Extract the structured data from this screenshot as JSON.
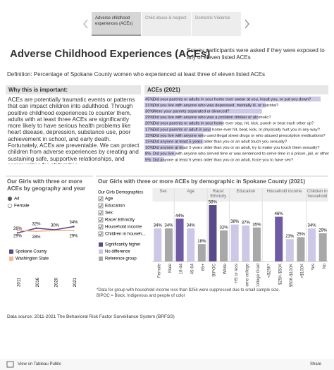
{
  "tabs": [
    "Adverse childhood experiences (ACEs)",
    "Child abuse & neglect",
    "Domestic Violence"
  ],
  "header": {
    "title": "Adverse Childhood Experiences (ACEs)",
    "subtitle": "Survey participants were asked if they were exposed to any of eleven listed ACEs",
    "definition": "Definition: Percentage of Spokane County women who experienced at least three of eleven listed ACEs"
  },
  "importance": {
    "title": "Why this is important:",
    "text": "ACEs are potentially traumatic events or patterns that can impact children into adulthood. Through positive childhood experiences to counter them, adults with at least three ACEs are significantly more likely to have serious health problems like heart disease, depression, substance use, poor achievement in school, and early death. Fortunately, ACEs are preventable. We can protect children from adverse experiences by creating and sustaining safe, supportive relationships, and communities for all families."
  },
  "chart_data": [
    {
      "type": "bar",
      "orientation": "horizontal",
      "title": "ACEs (2021)",
      "color": "#cdc8e8",
      "categories": [
        "Did your parents or adults in your home ever swear at you, insult you, or put you down?",
        "Did you live with anyone who was depressed, mentally ill, or suicidal?",
        "Were your parents separated or divorced?",
        "Did you live with anyone who was a problem drinker or alcoholic?",
        "Did your parents or adults in your home ever slap, hit, kick, punch or beat each other up?",
        "Did your parents or adult in your home ever hit, beat, kick, or physically hurt you in any way?",
        "Did you live with anyone who used illegal street drugs or who abused prescription medications?",
        "Did anyone at least 5 years older than you or an adult touch you sexually?",
        "Did anyone at least 5 years older than you or an adult, try to make you touch them sexually?",
        "Did you live with anyone who served time or was sentenced to serve time in a prison, jail, or other correctional facility?",
        "Did anyone at least 5 years older than you or an adult, force you to have sex?"
      ],
      "values": [
        45,
        31,
        30,
        29,
        20,
        17,
        15,
        15,
        10,
        8,
        5
      ],
      "value_labels": [
        "45%",
        "31%",
        "30%",
        "29%",
        "20%",
        "17%",
        "15%",
        "15%",
        "10%",
        "8%",
        "5%"
      ]
    },
    {
      "type": "line",
      "title": "Our Girls with three or more ACEs by geography and year",
      "filter": {
        "options": [
          "All",
          "Female"
        ]
      },
      "categories": [
        "2011",
        "2016",
        "2020",
        "2021"
      ],
      "series": [
        {
          "name": "Spokane County",
          "color": "#5b4a8b",
          "values": [
            26,
            32,
            30,
            34
          ],
          "value_labels": [
            "26%",
            "32%",
            "30%",
            "34%"
          ]
        },
        {
          "name": "Washington State",
          "color": "#f4b894",
          "values": [
            29,
            28,
            29,
            29
          ],
          "value_labels": [
            "29%",
            "28%",
            null,
            "29%"
          ]
        }
      ]
    },
    {
      "type": "bar",
      "title": "Our Girls with three or more ACEs by demographic in Spokane County (2021)",
      "filter": {
        "title": "Our Girls Demographics",
        "options": [
          "Age",
          "Education",
          "Sex",
          "Race/ Ethnicity",
          "Household income",
          "Children in househ..."
        ]
      },
      "legend": [
        {
          "name": "Significantly higher",
          "color": "#5b4a8b"
        },
        {
          "name": "No difference",
          "color": "#cdc8e8"
        },
        {
          "name": "Reference group",
          "color": "#a8a8a8"
        }
      ],
      "groups": [
        {
          "name": "Sex",
          "categories": [
            "Female",
            "Male"
          ],
          "values": [
            34,
            34
          ],
          "value_labels": [
            "34%",
            "34%"
          ],
          "colors": [
            "#cdc8e8",
            "#a8a8a8"
          ]
        },
        {
          "name": "Age",
          "categories": [
            "18-44",
            "45-64",
            "65+"
          ],
          "values": [
            44,
            34,
            18
          ],
          "value_labels": [
            "44%",
            "34%",
            "18%"
          ],
          "colors": [
            "#6f5ba3",
            "#cdc8e8",
            "#a8a8a8"
          ]
        },
        {
          "name": "Race/ Ethnicity",
          "categories": [
            "BIPOC",
            "White"
          ],
          "values": [
            58,
            32
          ],
          "value_labels": [
            "58%",
            "32%"
          ],
          "colors": [
            "#5b4a8b",
            "#a8a8a8"
          ]
        },
        {
          "name": "Education",
          "categories": [
            "HS or less",
            "Some college",
            "College Grad"
          ],
          "values": [
            38,
            37,
            35
          ],
          "value_labels": [
            "38%",
            "37%",
            "35%"
          ],
          "colors": [
            "#cdc8e8",
            "#cdc8e8",
            "#a8a8a8"
          ]
        },
        {
          "name": "Household income",
          "categories": [
            "<$25K*",
            "$25K-$50K",
            "$50K-$100K",
            ">$100K"
          ],
          "values": [
            null,
            46,
            23,
            25
          ],
          "value_labels": [
            null,
            "46%",
            "23%",
            "25%"
          ],
          "colors": [
            "#cdc8e8",
            "#6f5ba3",
            "#cdc8e8",
            "#a8a8a8"
          ]
        },
        {
          "name": "Children in household",
          "categories": [
            "Yes",
            "No"
          ],
          "values": [
            34,
            29
          ],
          "value_labels": [
            "34%",
            "29%"
          ],
          "colors": [
            "#cdc8e8",
            "#a8a8a8"
          ]
        }
      ],
      "notes": [
        "*Data for group with household income less than $25k were suppressed due to small sample size.",
        "BIPOC = Black, Indigenous and people of color"
      ]
    }
  ],
  "data_source": "Data source: 2011-2021 The Behavioral Risk Factor Surveillance System (BRFSS)",
  "footer": {
    "view": "View on Tableau Public",
    "share": "Share"
  }
}
